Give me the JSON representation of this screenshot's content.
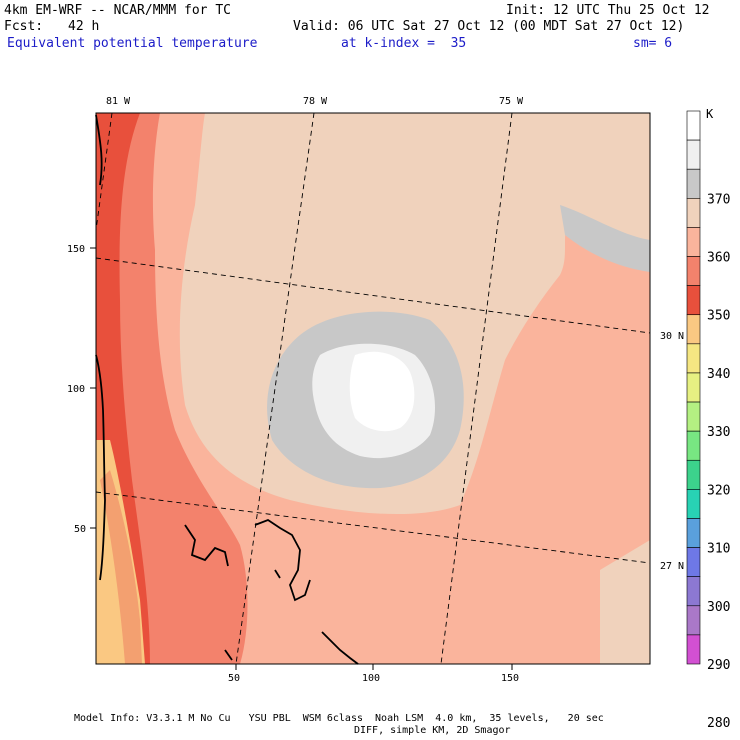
{
  "header": {
    "model_title": "4km EM-WRF -- NCAR/MMM for TC",
    "init": "Init: 12 UTC Thu 25 Oct 12",
    "fcst_label": "Fcst:",
    "fcst_value": "42 h",
    "valid": "Valid: 06 UTC Sat 27 Oct 12 (00 MDT Sat 27 Oct 12)",
    "field_name": "Equivalent potential temperature",
    "level": "at k-index =  35",
    "smoothing": "sm= 6"
  },
  "map": {
    "lon_labels": [
      "81 W",
      "78 W",
      "75 W"
    ],
    "lat_labels": [
      "30 N",
      "27 N"
    ],
    "x_ticks": [
      "50",
      "100",
      "150"
    ],
    "y_ticks": [
      "150",
      "100",
      "50"
    ]
  },
  "colorbar": {
    "unit": "K",
    "labels": [
      "370",
      "360",
      "350",
      "340",
      "330",
      "320",
      "310",
      "300",
      "290",
      "280"
    ],
    "colors": [
      "#ffffff",
      "#f0f0f0",
      "#c8c8c8",
      "#f0d2bc",
      "#fab49c",
      "#f3826c",
      "#e8503c",
      "#fac882",
      "#f5e682",
      "#e6f082",
      "#b4f082",
      "#78e682",
      "#3cd28c",
      "#28d2b4",
      "#5aa0dc",
      "#6e78e6",
      "#8c78d2",
      "#aa78c8",
      "#d250d2"
    ]
  },
  "footer": {
    "line1": "Model Info: V3.3.1 M No Cu   YSU PBL  WSM 6class  Noah LSM  4.0 km,  35 levels,   20 sec",
    "line2": "DIFF, simple KM, 2D Smagor"
  }
}
